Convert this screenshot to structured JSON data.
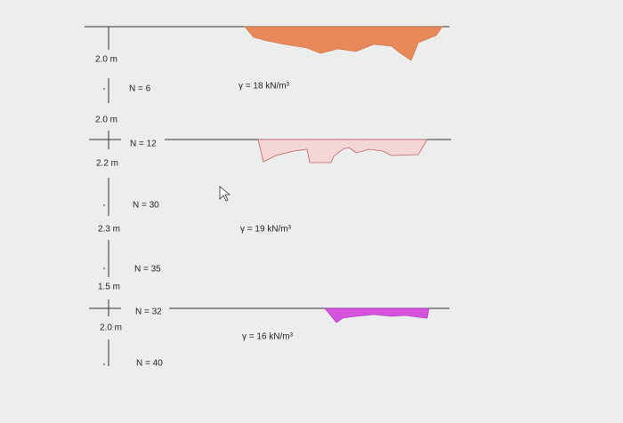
{
  "depth_labels": [
    "2.0 m",
    "2.0 m",
    "2.2 m",
    "2.3 m",
    "1.5 m",
    "2.0 m"
  ],
  "spt_values": [
    "N = 6",
    "N = 12",
    "N = 30",
    "N = 35",
    "N = 32",
    "N = 40"
  ],
  "unit_weights": [
    "γ = 18 kN/m³",
    "γ = 19 kN/m³",
    "γ = 16 kN/m³"
  ]
}
